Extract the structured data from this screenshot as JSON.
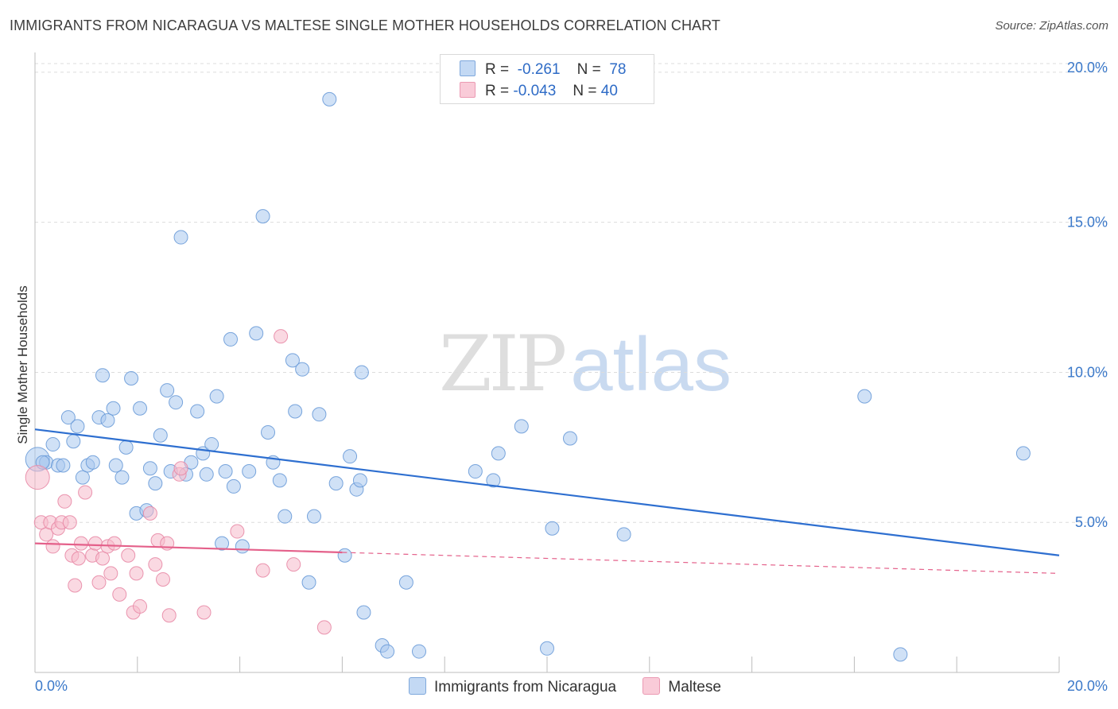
{
  "title": "IMMIGRANTS FROM NICARAGUA VS MALTESE SINGLE MOTHER HOUSEHOLDS CORRELATION CHART",
  "source": "Source: ZipAtlas.com",
  "watermark": {
    "zip": "ZIP",
    "atlas": "atlas"
  },
  "legend": {
    "rows": [
      {
        "r_label": "R =",
        "r_value": "-0.261",
        "n_label": "N =",
        "n_value": "78"
      },
      {
        "r_label": "R =",
        "r_value": "-0.043",
        "n_label": "N =",
        "n_value": "40"
      }
    ]
  },
  "colors": {
    "blue_fill": "#a9c8ef",
    "blue_stroke": "#6a9bd8",
    "blue_line": "#2e6fd0",
    "pink_fill": "#f6b9cb",
    "pink_stroke": "#e88aa6",
    "pink_line": "#e4608a",
    "grid": "#dcdcdc",
    "axis_text": "#3a78c9"
  },
  "chart_data": {
    "type": "scatter",
    "title": "IMMIGRANTS FROM NICARAGUA VS MALTESE SINGLE MOTHER HOUSEHOLDS CORRELATION CHART",
    "xlabel": "",
    "ylabel": "Single Mother Households",
    "xlim": [
      0,
      20
    ],
    "ylim": [
      0,
      20.5
    ],
    "x_tick_labels": [
      "0.0%",
      "20.0%"
    ],
    "y_ticks": [
      5,
      10,
      15,
      20
    ],
    "y_tick_labels": [
      "5.0%",
      "10.0%",
      "15.0%",
      "20.0%"
    ],
    "grid": true,
    "legend_position": "top-center",
    "series": [
      {
        "name": "Immigrants from Nicaragua",
        "color": "#a9c8ef",
        "trend": {
          "x": [
            0.0,
            20.0
          ],
          "y": [
            8.1,
            3.9
          ],
          "dashed_from": null
        },
        "points": [
          {
            "x": 0.05,
            "y": 7.1,
            "big": true
          },
          {
            "x": 0.22,
            "y": 7.0
          },
          {
            "x": 0.35,
            "y": 7.6
          },
          {
            "x": 0.45,
            "y": 6.9
          },
          {
            "x": 0.55,
            "y": 6.9
          },
          {
            "x": 0.65,
            "y": 8.5
          },
          {
            "x": 0.75,
            "y": 7.7
          },
          {
            "x": 0.83,
            "y": 8.2
          },
          {
            "x": 0.93,
            "y": 6.5
          },
          {
            "x": 1.03,
            "y": 6.9
          },
          {
            "x": 1.13,
            "y": 7.0
          },
          {
            "x": 1.25,
            "y": 8.5
          },
          {
            "x": 1.32,
            "y": 9.9
          },
          {
            "x": 1.42,
            "y": 8.4
          },
          {
            "x": 1.53,
            "y": 8.8
          },
          {
            "x": 1.58,
            "y": 6.9
          },
          {
            "x": 1.7,
            "y": 6.5
          },
          {
            "x": 1.78,
            "y": 7.5
          },
          {
            "x": 1.88,
            "y": 9.8
          },
          {
            "x": 1.98,
            "y": 5.3
          },
          {
            "x": 2.05,
            "y": 8.8
          },
          {
            "x": 2.18,
            "y": 5.4
          },
          {
            "x": 2.25,
            "y": 6.8
          },
          {
            "x": 2.35,
            "y": 6.3
          },
          {
            "x": 2.45,
            "y": 7.9
          },
          {
            "x": 2.58,
            "y": 9.4
          },
          {
            "x": 2.65,
            "y": 6.7
          },
          {
            "x": 2.75,
            "y": 9.0
          },
          {
            "x": 2.85,
            "y": 14.5
          },
          {
            "x": 2.95,
            "y": 6.6
          },
          {
            "x": 3.05,
            "y": 7.0
          },
          {
            "x": 3.17,
            "y": 8.7
          },
          {
            "x": 3.28,
            "y": 7.3
          },
          {
            "x": 3.35,
            "y": 6.6
          },
          {
            "x": 3.45,
            "y": 7.6
          },
          {
            "x": 3.55,
            "y": 9.2
          },
          {
            "x": 3.65,
            "y": 4.3
          },
          {
            "x": 3.72,
            "y": 6.7
          },
          {
            "x": 3.82,
            "y": 11.1
          },
          {
            "x": 3.88,
            "y": 6.2
          },
          {
            "x": 4.05,
            "y": 4.2
          },
          {
            "x": 4.18,
            "y": 6.7
          },
          {
            "x": 4.32,
            "y": 11.3
          },
          {
            "x": 4.45,
            "y": 15.2
          },
          {
            "x": 4.55,
            "y": 8.0
          },
          {
            "x": 4.65,
            "y": 7.0
          },
          {
            "x": 4.78,
            "y": 6.4
          },
          {
            "x": 4.88,
            "y": 5.2
          },
          {
            "x": 5.03,
            "y": 10.4
          },
          {
            "x": 5.08,
            "y": 8.7
          },
          {
            "x": 5.22,
            "y": 10.1
          },
          {
            "x": 5.35,
            "y": 3.0
          },
          {
            "x": 5.45,
            "y": 5.2
          },
          {
            "x": 5.55,
            "y": 8.6
          },
          {
            "x": 5.75,
            "y": 19.1
          },
          {
            "x": 5.88,
            "y": 6.3
          },
          {
            "x": 6.05,
            "y": 3.9
          },
          {
            "x": 6.15,
            "y": 7.2
          },
          {
            "x": 6.28,
            "y": 6.1
          },
          {
            "x": 6.35,
            "y": 6.4
          },
          {
            "x": 6.38,
            "y": 10.0
          },
          {
            "x": 6.42,
            "y": 2.0
          },
          {
            "x": 6.78,
            "y": 0.9
          },
          {
            "x": 6.88,
            "y": 0.7
          },
          {
            "x": 7.25,
            "y": 3.0
          },
          {
            "x": 7.5,
            "y": 0.7
          },
          {
            "x": 8.6,
            "y": 6.7
          },
          {
            "x": 8.95,
            "y": 6.4
          },
          {
            "x": 9.05,
            "y": 7.3
          },
          {
            "x": 9.5,
            "y": 8.2
          },
          {
            "x": 10.0,
            "y": 0.8
          },
          {
            "x": 10.1,
            "y": 4.8
          },
          {
            "x": 10.45,
            "y": 7.8
          },
          {
            "x": 11.5,
            "y": 4.6
          },
          {
            "x": 16.2,
            "y": 9.2
          },
          {
            "x": 16.9,
            "y": 0.6
          },
          {
            "x": 19.3,
            "y": 7.3
          },
          {
            "x": 0.15,
            "y": 7.0
          }
        ]
      },
      {
        "name": "Maltese",
        "color": "#f6b9cb",
        "trend": {
          "x": [
            0.0,
            20.0
          ],
          "y": [
            4.3,
            3.3
          ],
          "dashed_from": 6.0
        },
        "points": [
          {
            "x": 0.05,
            "y": 6.5,
            "big": true
          },
          {
            "x": 0.12,
            "y": 5.0
          },
          {
            "x": 0.22,
            "y": 4.6
          },
          {
            "x": 0.3,
            "y": 5.0
          },
          {
            "x": 0.35,
            "y": 4.2
          },
          {
            "x": 0.45,
            "y": 4.8
          },
          {
            "x": 0.52,
            "y": 5.0
          },
          {
            "x": 0.58,
            "y": 5.7
          },
          {
            "x": 0.68,
            "y": 5.0
          },
          {
            "x": 0.72,
            "y": 3.9
          },
          {
            "x": 0.78,
            "y": 2.9
          },
          {
            "x": 0.85,
            "y": 3.8
          },
          {
            "x": 0.9,
            "y": 4.3
          },
          {
            "x": 0.98,
            "y": 6.0
          },
          {
            "x": 1.12,
            "y": 3.9
          },
          {
            "x": 1.18,
            "y": 4.3
          },
          {
            "x": 1.25,
            "y": 3.0
          },
          {
            "x": 1.32,
            "y": 3.8
          },
          {
            "x": 1.42,
            "y": 4.2
          },
          {
            "x": 1.48,
            "y": 3.3
          },
          {
            "x": 1.55,
            "y": 4.3
          },
          {
            "x": 1.65,
            "y": 2.6
          },
          {
            "x": 1.82,
            "y": 3.9
          },
          {
            "x": 1.92,
            "y": 2.0
          },
          {
            "x": 1.98,
            "y": 3.3
          },
          {
            "x": 2.05,
            "y": 2.2
          },
          {
            "x": 2.25,
            "y": 5.3
          },
          {
            "x": 2.35,
            "y": 3.6
          },
          {
            "x": 2.4,
            "y": 4.4
          },
          {
            "x": 2.5,
            "y": 3.1
          },
          {
            "x": 2.58,
            "y": 4.3
          },
          {
            "x": 2.62,
            "y": 1.9
          },
          {
            "x": 2.82,
            "y": 6.6
          },
          {
            "x": 3.3,
            "y": 2.0
          },
          {
            "x": 3.95,
            "y": 4.7
          },
          {
            "x": 4.45,
            "y": 3.4
          },
          {
            "x": 4.8,
            "y": 11.2
          },
          {
            "x": 5.05,
            "y": 3.6
          },
          {
            "x": 5.65,
            "y": 1.5
          },
          {
            "x": 2.85,
            "y": 6.8
          }
        ]
      }
    ]
  }
}
